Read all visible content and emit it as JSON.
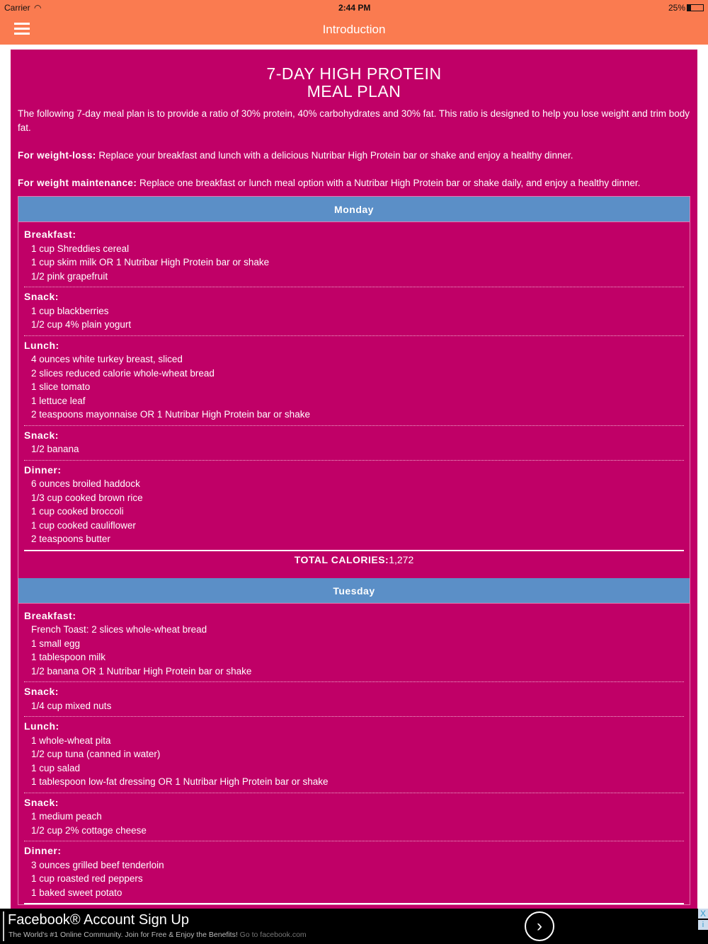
{
  "status": {
    "carrier": "Carrier",
    "time": "2:44 PM",
    "battery": "25%"
  },
  "nav": {
    "title": "Introduction"
  },
  "title_line1": "7-DAY HIGH PROTEIN",
  "title_line2": "MEAL PLAN",
  "intro": "The following 7-day meal plan is to provide a ratio of 30% protein, 40% carbohydrates and 30% fat. This ratio is designed to help you lose weight and trim body fat.",
  "weight_loss": {
    "label": "For weight-loss:",
    "text": " Replace your breakfast and lunch with a delicious Nutribar High Protein bar or shake and enjoy a healthy dinner."
  },
  "maintenance": {
    "label": "For weight maintenance:",
    "text": " Replace one breakfast or lunch meal option with a Nutribar High Protein bar or shake daily, and enjoy a healthy dinner."
  },
  "days": [
    {
      "name": "Monday",
      "meals": [
        {
          "label": "Breakfast:",
          "items": [
            "1 cup Shreddies cereal",
            "1 cup skim milk OR 1 Nutribar High Protein bar or shake",
            "1/2 pink grapefruit"
          ]
        },
        {
          "label": "Snack:",
          "items": [
            "1 cup blackberries",
            "1/2 cup 4% plain yogurt"
          ]
        },
        {
          "label": "Lunch:",
          "items": [
            "4 ounces white turkey breast, sliced",
            "2 slices reduced calorie whole-wheat bread",
            "1 slice tomato",
            "1 lettuce leaf",
            "2 teaspoons mayonnaise OR 1 Nutribar High Protein bar or shake"
          ]
        },
        {
          "label": "Snack:",
          "items": [
            "1/2 banana"
          ]
        },
        {
          "label": "Dinner:",
          "items": [
            "6 ounces broiled haddock",
            "1/3 cup cooked brown rice",
            "1 cup cooked broccoli",
            "1 cup cooked cauliflower",
            "2 teaspoons butter"
          ]
        }
      ],
      "calories_label": "TOTAL CALORIES:",
      "calories": "1,272"
    },
    {
      "name": "Tuesday",
      "meals": [
        {
          "label": "Breakfast:",
          "items": [
            "French Toast: 2 slices whole-wheat bread",
            "1 small egg",
            "1 tablespoon milk",
            "1/2 banana OR 1 Nutribar High Protein bar or shake"
          ]
        },
        {
          "label": "Snack:",
          "items": [
            "1/4 cup mixed nuts"
          ]
        },
        {
          "label": "Lunch:",
          "items": [
            "1 whole-wheat pita",
            "1/2 cup tuna (canned in water)",
            "1 cup salad",
            "1 tablespoon low-fat dressing OR 1 Nutribar High Protein bar or shake"
          ]
        },
        {
          "label": "Snack:",
          "items": [
            "1 medium peach",
            "1/2 cup 2% cottage cheese"
          ]
        },
        {
          "label": "Dinner:",
          "items": [
            "3 ounces grilled beef tenderloin",
            "1 cup roasted red peppers",
            "1 baked sweet potato"
          ]
        }
      ]
    }
  ],
  "ad": {
    "title": "Facebook® Account Sign Up",
    "subtitle": "The World's #1 Online Community. Join for Free & Enjoy the Benefits!",
    "link": " Go to facebook.com",
    "close": "X",
    "info": "i"
  },
  "colors": {
    "header": "#fa7b50",
    "panel": "#c00067",
    "day_header": "#5b8fc7"
  }
}
